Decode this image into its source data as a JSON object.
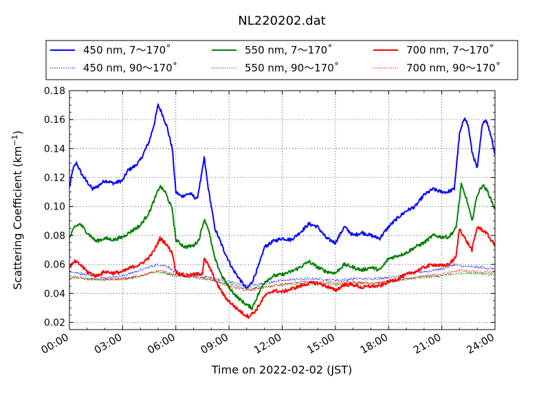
{
  "chart_data": {
    "type": "line",
    "title": "NL220202.dat",
    "xlabel": "Time on 2022-02-02 (JST)",
    "ylabel": "Scattering Coefficient (km",
    "ylabel_sup": "−1",
    "ylabel_close": ")",
    "xlim": [
      0,
      24
    ],
    "ylim": [
      0.015,
      0.18
    ],
    "x_ticks": [
      {
        "value": 0,
        "label": "00:00"
      },
      {
        "value": 3,
        "label": "03:00"
      },
      {
        "value": 6,
        "label": "06:00"
      },
      {
        "value": 9,
        "label": "09:00"
      },
      {
        "value": 12,
        "label": "12:00"
      },
      {
        "value": 15,
        "label": "15:00"
      },
      {
        "value": 18,
        "label": "18:00"
      },
      {
        "value": 21,
        "label": "21:00"
      },
      {
        "value": 24,
        "label": "24:00"
      }
    ],
    "y_ticks": [
      {
        "value": 0.02,
        "label": "0.02"
      },
      {
        "value": 0.04,
        "label": "0.04"
      },
      {
        "value": 0.06,
        "label": "0.06"
      },
      {
        "value": 0.08,
        "label": "0.08"
      },
      {
        "value": 0.1,
        "label": "0.10"
      },
      {
        "value": 0.12,
        "label": "0.12"
      },
      {
        "value": 0.14,
        "label": "0.14"
      },
      {
        "value": 0.16,
        "label": "0.16"
      },
      {
        "value": 0.18,
        "label": "0.18"
      }
    ],
    "grid": true,
    "legend_position": "top",
    "series": [
      {
        "name": "450 nm, 7～170˚",
        "color": "#0000ff",
        "style": "solid",
        "x": [
          0,
          0.2,
          0.4,
          0.7,
          1.0,
          1.3,
          1.6,
          2.0,
          2.5,
          3.0,
          3.3,
          3.7,
          4.0,
          4.5,
          4.8,
          5.0,
          5.2,
          5.5,
          5.8,
          6.0,
          6.3,
          6.8,
          7.2,
          7.5,
          7.6,
          7.8,
          8.2,
          8.7,
          9.2,
          9.7,
          10.0,
          10.3,
          10.7,
          11.0,
          11.5,
          12.0,
          12.5,
          13.0,
          13.5,
          14.0,
          14.5,
          15.0,
          15.5,
          16.0,
          16.5,
          17.0,
          17.5,
          18.0,
          18.5,
          19.0,
          19.5,
          20.0,
          20.5,
          21.0,
          21.3,
          21.7,
          22.0,
          22.3,
          22.5,
          22.7,
          23.0,
          23.3,
          23.5,
          23.8,
          24.0
        ],
        "y": [
          0.113,
          0.126,
          0.13,
          0.122,
          0.117,
          0.112,
          0.114,
          0.118,
          0.116,
          0.118,
          0.125,
          0.128,
          0.132,
          0.145,
          0.158,
          0.17,
          0.165,
          0.155,
          0.14,
          0.11,
          0.107,
          0.109,
          0.105,
          0.125,
          0.134,
          0.115,
          0.085,
          0.07,
          0.057,
          0.048,
          0.043,
          0.048,
          0.06,
          0.072,
          0.076,
          0.078,
          0.077,
          0.082,
          0.088,
          0.086,
          0.078,
          0.075,
          0.086,
          0.08,
          0.082,
          0.08,
          0.078,
          0.086,
          0.092,
          0.097,
          0.1,
          0.108,
          0.112,
          0.11,
          0.11,
          0.112,
          0.15,
          0.162,
          0.155,
          0.138,
          0.126,
          0.158,
          0.16,
          0.148,
          0.136
        ]
      },
      {
        "name": "450 nm, 90～170˚",
        "color": "#0000ff",
        "style": "dotted",
        "x": [
          0,
          1,
          2,
          3,
          4,
          5,
          5.5,
          6,
          7,
          8,
          9,
          10,
          11,
          12,
          13,
          14,
          15,
          16,
          17,
          18,
          19,
          20,
          21,
          21.7,
          22,
          23,
          24
        ],
        "y": [
          0.055,
          0.053,
          0.051,
          0.052,
          0.056,
          0.06,
          0.059,
          0.054,
          0.053,
          0.051,
          0.048,
          0.045,
          0.047,
          0.049,
          0.05,
          0.05,
          0.049,
          0.05,
          0.05,
          0.051,
          0.053,
          0.055,
          0.057,
          0.06,
          0.059,
          0.058,
          0.057
        ]
      },
      {
        "name": "550 nm, 7～170˚",
        "color": "#008000",
        "style": "solid",
        "x": [
          0,
          0.3,
          0.6,
          1.0,
          1.5,
          2.0,
          2.5,
          3.0,
          3.5,
          4.0,
          4.5,
          4.8,
          5.1,
          5.4,
          5.8,
          6.0,
          6.5,
          7.0,
          7.3,
          7.6,
          7.8,
          8.2,
          8.6,
          9.0,
          9.5,
          10.0,
          10.3,
          10.6,
          11.0,
          11.5,
          12.0,
          12.5,
          13.0,
          13.5,
          14.0,
          14.5,
          15.0,
          15.5,
          16.0,
          16.5,
          17.0,
          17.5,
          18.0,
          18.5,
          19.0,
          19.5,
          20.0,
          20.5,
          21.0,
          21.4,
          21.8,
          22.1,
          22.4,
          22.7,
          23.0,
          23.3,
          23.6,
          24.0
        ],
        "y": [
          0.078,
          0.086,
          0.088,
          0.082,
          0.076,
          0.078,
          0.077,
          0.079,
          0.083,
          0.087,
          0.096,
          0.105,
          0.114,
          0.11,
          0.098,
          0.077,
          0.072,
          0.073,
          0.077,
          0.091,
          0.086,
          0.064,
          0.052,
          0.044,
          0.037,
          0.032,
          0.03,
          0.038,
          0.048,
          0.052,
          0.053,
          0.055,
          0.058,
          0.062,
          0.058,
          0.055,
          0.054,
          0.06,
          0.058,
          0.056,
          0.058,
          0.056,
          0.064,
          0.066,
          0.068,
          0.072,
          0.075,
          0.08,
          0.079,
          0.079,
          0.085,
          0.115,
          0.105,
          0.09,
          0.108,
          0.115,
          0.11,
          0.098
        ]
      },
      {
        "name": "550 nm, 90～170˚",
        "color": "#008000",
        "style": "dotted",
        "x": [
          0,
          1,
          2,
          3,
          4,
          5,
          6,
          7,
          8,
          9,
          10,
          11,
          12,
          13,
          14,
          15,
          16,
          17,
          18,
          19,
          20,
          21,
          22,
          23,
          24
        ],
        "y": [
          0.052,
          0.05,
          0.049,
          0.05,
          0.052,
          0.055,
          0.052,
          0.051,
          0.049,
          0.046,
          0.043,
          0.045,
          0.046,
          0.047,
          0.047,
          0.046,
          0.047,
          0.047,
          0.048,
          0.05,
          0.051,
          0.052,
          0.054,
          0.054,
          0.053
        ]
      },
      {
        "name": "700 nm, 7～170˚",
        "color": "#ff0000",
        "style": "solid",
        "x": [
          0,
          0.3,
          0.6,
          1.0,
          1.5,
          2.0,
          2.5,
          3.0,
          3.5,
          4.0,
          4.5,
          4.8,
          5.1,
          5.4,
          5.8,
          6.0,
          6.5,
          7.0,
          7.5,
          7.6,
          7.9,
          8.3,
          8.8,
          9.3,
          9.8,
          10.1,
          10.5,
          11.0,
          11.5,
          12.0,
          12.5,
          13.0,
          13.5,
          14.0,
          14.5,
          15.0,
          15.5,
          16.0,
          16.5,
          17.0,
          17.5,
          18.0,
          18.5,
          19.0,
          19.5,
          20.0,
          20.5,
          21.0,
          21.4,
          21.8,
          22.0,
          22.3,
          22.7,
          23.0,
          23.5,
          24.0
        ],
        "y": [
          0.058,
          0.062,
          0.06,
          0.055,
          0.052,
          0.055,
          0.054,
          0.055,
          0.058,
          0.06,
          0.065,
          0.07,
          0.078,
          0.075,
          0.068,
          0.055,
          0.052,
          0.053,
          0.054,
          0.064,
          0.058,
          0.047,
          0.037,
          0.031,
          0.026,
          0.024,
          0.028,
          0.038,
          0.042,
          0.041,
          0.043,
          0.045,
          0.047,
          0.047,
          0.045,
          0.042,
          0.046,
          0.046,
          0.044,
          0.045,
          0.045,
          0.048,
          0.05,
          0.053,
          0.055,
          0.058,
          0.06,
          0.059,
          0.06,
          0.065,
          0.085,
          0.078,
          0.07,
          0.086,
          0.082,
          0.073
        ]
      },
      {
        "name": "700 nm, 90～170˚",
        "color": "#ff0000",
        "style": "dotted",
        "x": [
          0,
          1,
          2,
          3,
          4,
          5,
          6,
          7,
          8,
          9,
          10,
          11,
          12,
          13,
          14,
          15,
          16,
          17,
          18,
          19,
          20,
          21,
          22,
          23,
          24
        ],
        "y": [
          0.051,
          0.05,
          0.05,
          0.05,
          0.052,
          0.056,
          0.053,
          0.052,
          0.05,
          0.045,
          0.042,
          0.044,
          0.046,
          0.048,
          0.048,
          0.047,
          0.048,
          0.047,
          0.048,
          0.05,
          0.052,
          0.053,
          0.056,
          0.055,
          0.055
        ]
      }
    ]
  }
}
